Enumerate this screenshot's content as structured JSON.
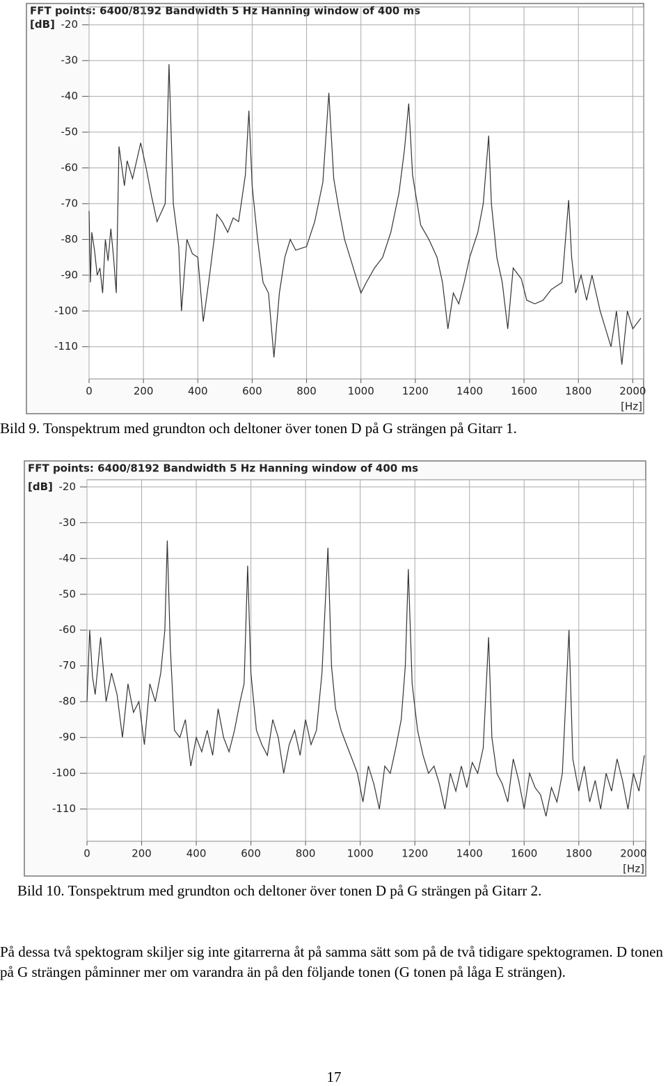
{
  "chart_data": [
    {
      "type": "line",
      "title": "FFT points: 6400/8192  Bandwidth 5 Hz  Hanning window of 400 ms",
      "y_label": "[dB]",
      "x_label": "[Hz]",
      "xlim": [
        0,
        2040
      ],
      "ylim": [
        -119,
        -15
      ],
      "xticks": [
        0,
        200,
        400,
        600,
        800,
        1000,
        1200,
        1400,
        1600,
        1800,
        2000
      ],
      "yticks": [
        -20,
        -30,
        -40,
        -50,
        -60,
        -70,
        -80,
        -90,
        -100,
        -110
      ],
      "grid": true,
      "color": "#333333",
      "x": [
        0,
        5,
        10,
        20,
        30,
        40,
        50,
        60,
        70,
        80,
        90,
        100,
        110,
        130,
        140,
        160,
        190,
        210,
        230,
        250,
        280,
        294,
        310,
        330,
        340,
        360,
        380,
        400,
        420,
        440,
        460,
        470,
        490,
        510,
        530,
        550,
        575,
        588,
        600,
        620,
        640,
        660,
        680,
        700,
        720,
        740,
        760,
        800,
        830,
        860,
        882,
        900,
        920,
        940,
        960,
        980,
        1000,
        1020,
        1050,
        1080,
        1110,
        1140,
        1160,
        1176,
        1190,
        1220,
        1250,
        1280,
        1300,
        1320,
        1340,
        1360,
        1380,
        1400,
        1430,
        1450,
        1470,
        1480,
        1500,
        1520,
        1540,
        1560,
        1590,
        1610,
        1640,
        1670,
        1700,
        1740,
        1764,
        1775,
        1790,
        1810,
        1830,
        1850,
        1880,
        1900,
        1920,
        1940,
        1960,
        1980,
        2000,
        2030
      ],
      "values": [
        -72,
        -92,
        -78,
        -83,
        -90,
        -88,
        -95,
        -80,
        -86,
        -77,
        -85,
        -95,
        -54,
        -65,
        -58,
        -63,
        -53,
        -60,
        -68,
        -75,
        -70,
        -31,
        -70,
        -82,
        -100,
        -80,
        -84,
        -85,
        -103,
        -92,
        -80,
        -73,
        -75,
        -78,
        -74,
        -75,
        -62,
        -44,
        -65,
        -80,
        -92,
        -95,
        -113,
        -95,
        -85,
        -80,
        -83,
        -82,
        -75,
        -64,
        -39,
        -63,
        -72,
        -80,
        -85,
        -90,
        -95,
        -92,
        -88,
        -85,
        -78,
        -67,
        -55,
        -42,
        -62,
        -76,
        -80,
        -85,
        -92,
        -105,
        -95,
        -98,
        -92,
        -85,
        -78,
        -70,
        -51,
        -70,
        -85,
        -92,
        -105,
        -88,
        -91,
        -97,
        -98,
        -97,
        -94,
        -92,
        -69,
        -85,
        -95,
        -90,
        -97,
        -90,
        -100,
        -105,
        -110,
        -100,
        -115,
        -100,
        -105,
        -102
      ]
    },
    {
      "type": "line",
      "title": "FFT points: 6400/8192  Bandwidth 5 Hz  Hanning window of 400 ms",
      "y_label": "[dB]",
      "x_label": "[Hz]",
      "xlim": [
        0,
        2045
      ],
      "ylim": [
        -119,
        -18
      ],
      "xticks": [
        0,
        200,
        400,
        600,
        800,
        1000,
        1200,
        1400,
        1600,
        1800,
        2000
      ],
      "yticks": [
        -20,
        -30,
        -40,
        -50,
        -60,
        -70,
        -80,
        -90,
        -100,
        -110
      ],
      "grid": true,
      "color": "#333333",
      "x": [
        0,
        10,
        20,
        30,
        50,
        70,
        90,
        110,
        130,
        150,
        170,
        190,
        210,
        230,
        250,
        270,
        285,
        294,
        305,
        320,
        340,
        360,
        380,
        400,
        420,
        440,
        460,
        480,
        500,
        520,
        540,
        560,
        575,
        588,
        600,
        620,
        640,
        660,
        680,
        700,
        720,
        740,
        760,
        780,
        800,
        820,
        840,
        860,
        882,
        895,
        910,
        930,
        950,
        970,
        990,
        1010,
        1030,
        1050,
        1070,
        1090,
        1110,
        1130,
        1150,
        1165,
        1176,
        1190,
        1210,
        1230,
        1250,
        1270,
        1290,
        1310,
        1330,
        1350,
        1370,
        1390,
        1410,
        1430,
        1450,
        1470,
        1482,
        1500,
        1520,
        1540,
        1560,
        1580,
        1600,
        1620,
        1640,
        1660,
        1680,
        1700,
        1720,
        1740,
        1764,
        1778,
        1800,
        1820,
        1840,
        1860,
        1880,
        1900,
        1920,
        1940,
        1960,
        1980,
        2000,
        2020,
        2040
      ],
      "values": [
        -80,
        -60,
        -73,
        -78,
        -62,
        -80,
        -72,
        -78,
        -90,
        -75,
        -83,
        -80,
        -92,
        -75,
        -80,
        -72,
        -60,
        -35,
        -65,
        -88,
        -90,
        -85,
        -98,
        -90,
        -94,
        -88,
        -95,
        -82,
        -90,
        -94,
        -88,
        -80,
        -75,
        -42,
        -72,
        -88,
        -92,
        -95,
        -85,
        -90,
        -100,
        -92,
        -88,
        -95,
        -85,
        -92,
        -88,
        -72,
        -37,
        -70,
        -82,
        -88,
        -92,
        -96,
        -100,
        -108,
        -98,
        -103,
        -110,
        -98,
        -100,
        -93,
        -85,
        -70,
        -43,
        -75,
        -88,
        -95,
        -100,
        -98,
        -103,
        -110,
        -100,
        -105,
        -98,
        -104,
        -97,
        -100,
        -93,
        -62,
        -90,
        -100,
        -103,
        -108,
        -96,
        -102,
        -110,
        -100,
        -104,
        -106,
        -112,
        -104,
        -108,
        -100,
        -60,
        -96,
        -105,
        -98,
        -108,
        -102,
        -110,
        -100,
        -105,
        -96,
        -102,
        -110,
        -100,
        -105,
        -95
      ]
    }
  ],
  "captions": [
    "Bild 9. Tonspektrum med grundton och deltoner över tonen D på G strängen på Gitarr 1.",
    "Bild 10. Tonspektrum med grundton och deltoner över tonen D på G strängen på Gitarr 2."
  ],
  "paragraph": "På dessa två spektogram skiljer sig inte gitarrerna åt på samma sätt som på de två tidigare spektogramen. D tonen på G strängen påminner mer om varandra än på den följande tonen (G tonen på låga E strängen).",
  "page_number": "17"
}
